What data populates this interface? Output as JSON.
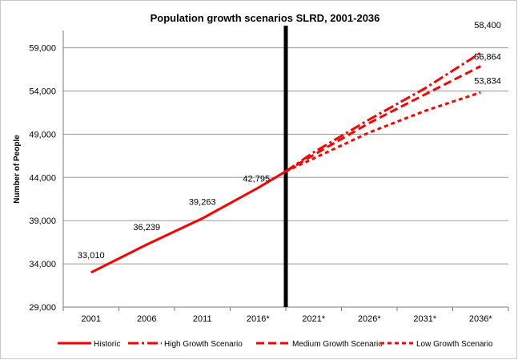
{
  "chart_data": {
    "type": "line",
    "title": "Population growth scenarios SLRD, 2001-2036",
    "xlabel": "",
    "ylabel": "Number of People",
    "categories": [
      "2001",
      "2006",
      "2011",
      "2016*",
      "2021*",
      "2026*",
      "2031*",
      "2036*"
    ],
    "ylim": [
      29000,
      61000
    ],
    "yticks": [
      "29,000",
      "34,000",
      "39,000",
      "44,000",
      "49,000",
      "54,000",
      "59,000"
    ],
    "ytick_values": [
      29000,
      34000,
      39000,
      44000,
      49000,
      54000,
      59000
    ],
    "grid": "horizontal",
    "divider_category": "2016*",
    "legend_position": "bottom",
    "series": [
      {
        "name": "Historic",
        "style": "solid",
        "color": "#ff0000",
        "values": [
          33010,
          36239,
          39263,
          42795,
          null,
          null,
          null,
          null
        ],
        "end_value": 44700
      },
      {
        "name": "High Growth Scenario",
        "style": "dashdot",
        "color": "#ff0000",
        "start_value": 44700,
        "values": [
          null,
          null,
          null,
          null,
          46900,
          50700,
          54300,
          58400
        ]
      },
      {
        "name": "Medium Growth Scenario",
        "style": "dash",
        "color": "#ff0000",
        "start_value": 44700,
        "values": [
          null,
          null,
          null,
          null,
          46600,
          50300,
          53600,
          56864
        ]
      },
      {
        "name": "Low Growth Scenario",
        "style": "dot",
        "color": "#ff0000",
        "start_value": 44700,
        "values": [
          null,
          null,
          null,
          null,
          46200,
          49200,
          51700,
          53834
        ]
      }
    ],
    "data_labels": [
      {
        "text": "33,010",
        "category": "2001",
        "value": 33010
      },
      {
        "text": "36,239",
        "category": "2006",
        "value": 36239
      },
      {
        "text": "39,263",
        "category": "2011",
        "value": 39263
      },
      {
        "text": "42,795",
        "category": "2016*",
        "value": 42795
      },
      {
        "text": "58,400",
        "category": "2036*",
        "value": 58400
      },
      {
        "text": "56,864",
        "category": "2036*",
        "value": 56864
      },
      {
        "text": "53,834",
        "category": "2036*",
        "value": 53834
      }
    ]
  }
}
